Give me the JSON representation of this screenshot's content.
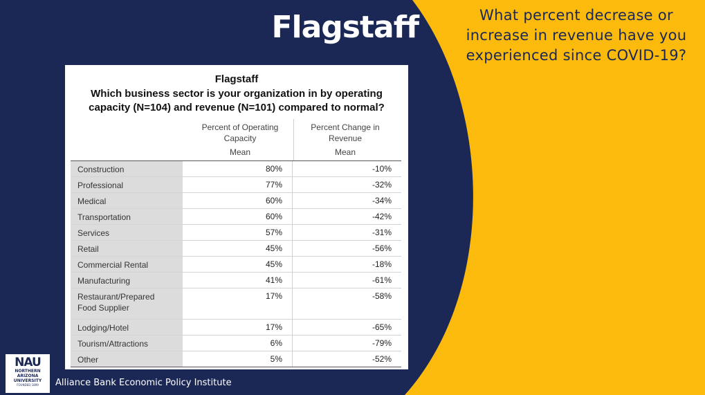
{
  "slide": {
    "title": "Flagstaff",
    "question": "What percent decrease or increase in revenue have you experienced since COVID-19?",
    "footer": "Alliance Bank Economic Policy Institute",
    "colors": {
      "navy": "#1B2856",
      "gold": "#FBBA0C"
    }
  },
  "table": {
    "title": "Flagstaff",
    "subtitle": "Which business sector is your organization in by operating capacity (N=104) and revenue (N=101) compared to normal?",
    "columns": [
      {
        "header": "Percent of Operating Capacity",
        "sub": "Mean"
      },
      {
        "header": "Percent Change in Revenue",
        "sub": "Mean"
      }
    ],
    "rows": [
      {
        "sector": "Construction",
        "capacity": "80%",
        "revenue": "-10%"
      },
      {
        "sector": "Professional",
        "capacity": "77%",
        "revenue": "-32%"
      },
      {
        "sector": "Medical",
        "capacity": "60%",
        "revenue": "-34%"
      },
      {
        "sector": "Transportation",
        "capacity": "60%",
        "revenue": "-42%"
      },
      {
        "sector": "Services",
        "capacity": "57%",
        "revenue": "-31%"
      },
      {
        "sector": "Retail",
        "capacity": "45%",
        "revenue": "-56%"
      },
      {
        "sector": "Commercial Rental",
        "capacity": "45%",
        "revenue": "-18%"
      },
      {
        "sector": "Manufacturing",
        "capacity": "41%",
        "revenue": "-61%"
      },
      {
        "sector": "Restaurant/Prepared Food Supplier",
        "capacity": "17%",
        "revenue": "-58%"
      },
      {
        "sector": "Lodging/Hotel",
        "capacity": "17%",
        "revenue": "-65%"
      },
      {
        "sector": "Tourism/Attractions",
        "capacity": "6%",
        "revenue": "-79%"
      },
      {
        "sector": "Other",
        "capacity": "5%",
        "revenue": "-52%"
      }
    ]
  },
  "logo": {
    "mark": "NAU",
    "lines": [
      "NORTHERN",
      "ARIZONA",
      "UNIVERSITY",
      "FOUNDED 1899"
    ]
  }
}
